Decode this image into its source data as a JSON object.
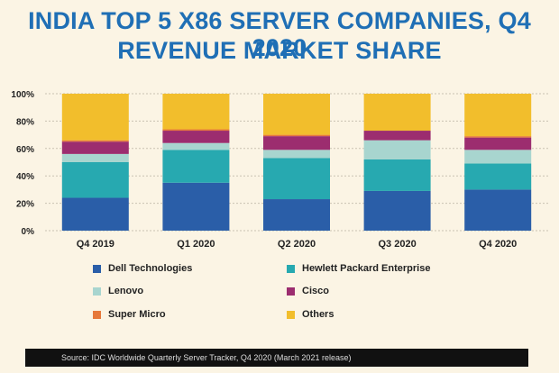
{
  "title_line1": "INDIA TOP 5 X86 SERVER COMPANIES, Q4 2020",
  "title_line2": "REVENUE MARKET SHARE",
  "source": "Source: IDC Worldwide Quarterly Server Tracker, Q4 2020 (March 2021 release)",
  "chart_data": {
    "type": "bar",
    "stacked": true,
    "categories": [
      "Q4 2019",
      "Q1 2020",
      "Q2 2020",
      "Q3 2020",
      "Q4 2020"
    ],
    "ylim": [
      0,
      100
    ],
    "yticks": [
      "0%",
      "20%",
      "40%",
      "60%",
      "80%",
      "100%"
    ],
    "series": [
      {
        "name": "Dell Technologies",
        "color": "#2a5ea8",
        "values": [
          24,
          35,
          23,
          29,
          30
        ]
      },
      {
        "name": "Hewlett Packard Enterprise",
        "color": "#27a9b0",
        "values": [
          26,
          24,
          30,
          23,
          19
        ]
      },
      {
        "name": "Lenovo",
        "color": "#a8d5cf",
        "values": [
          6,
          5,
          6,
          14,
          10
        ]
      },
      {
        "name": "Cisco",
        "color": "#9c2d6f",
        "values": [
          9,
          9,
          10,
          7,
          9
        ]
      },
      {
        "name": "Super Micro",
        "color": "#e6793b",
        "values": [
          1,
          1,
          1,
          0,
          1
        ]
      },
      {
        "name": "Others",
        "color": "#f2be2c",
        "values": [
          34,
          26,
          30,
          27,
          31
        ]
      }
    ],
    "legend_position": "bottom",
    "grid": true
  }
}
